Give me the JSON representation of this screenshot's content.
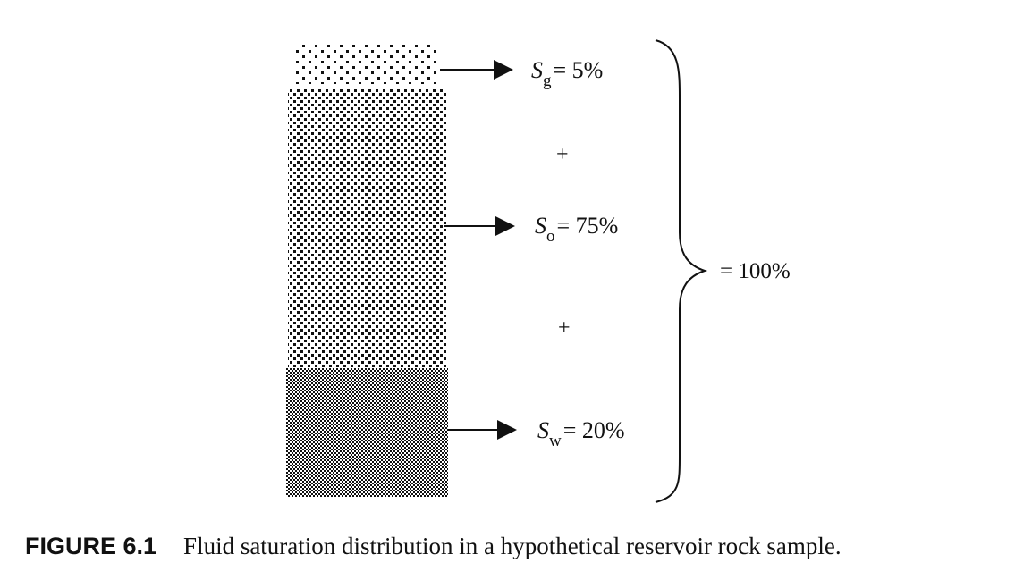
{
  "diagram": {
    "layers": [
      {
        "id": "gas",
        "symbol": "S",
        "subscript": "g",
        "value": "= 5%"
      },
      {
        "id": "oil",
        "symbol": "S",
        "subscript": "o",
        "value": "= 75%"
      },
      {
        "id": "water",
        "symbol": "S",
        "subscript": "w",
        "value": "= 20%"
      }
    ],
    "plus_top": "+",
    "plus_bottom": "+",
    "total": "= 100%"
  },
  "caption": {
    "label": "FIGURE 6.1",
    "text": "Fluid saturation distribution in a hypothetical reservoir rock sample."
  }
}
